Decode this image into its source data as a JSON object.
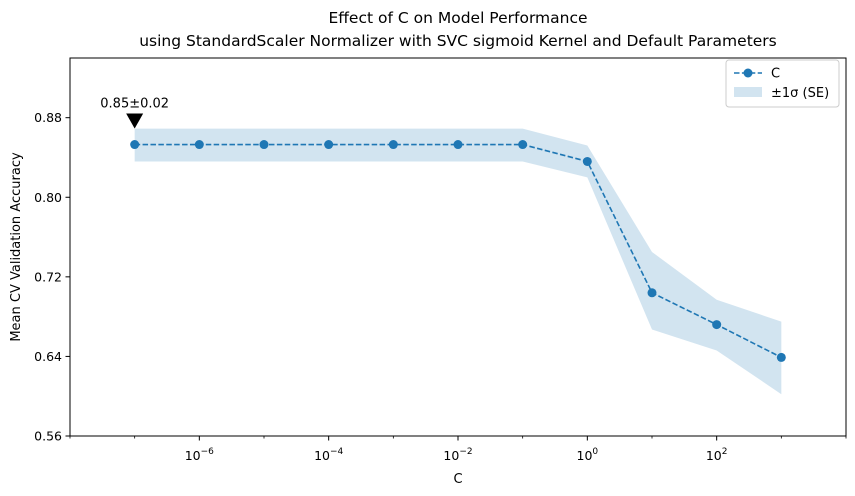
{
  "chart_data": {
    "type": "line",
    "title": "Effect of C on Model Performance",
    "subtitle": "using StandardScaler Normalizer with SVC sigmoid Kernel and Default Parameters",
    "xlabel": "C",
    "ylabel": "Mean CV Validation Accuracy",
    "xscale": "log",
    "xlim": [
      1e-08,
      10000.0
    ],
    "ylim": [
      0.56,
      0.94
    ],
    "x_ticks": [
      {
        "value": 1e-06,
        "base": "10",
        "exp": "−6"
      },
      {
        "value": 0.0001,
        "base": "10",
        "exp": "−4"
      },
      {
        "value": 0.01,
        "base": "10",
        "exp": "−2"
      },
      {
        "value": 1,
        "base": "10",
        "exp": "0"
      },
      {
        "value": 100,
        "base": "10",
        "exp": "2"
      }
    ],
    "y_ticks": [
      {
        "value": 0.56,
        "label": "0.56"
      },
      {
        "value": 0.64,
        "label": "0.64"
      },
      {
        "value": 0.72,
        "label": "0.72"
      },
      {
        "value": 0.8,
        "label": "0.80"
      },
      {
        "value": 0.88,
        "label": "0.88"
      }
    ],
    "grid": false,
    "legend_position": "top-right",
    "series": [
      {
        "name": "C",
        "color": "#1f77b4",
        "line_style": "dashed",
        "marker": "circle",
        "x": [
          1e-07,
          1e-06,
          1e-05,
          0.0001,
          0.001,
          0.01,
          0.1,
          1,
          10,
          100,
          1000
        ],
        "y": [
          0.853,
          0.853,
          0.853,
          0.853,
          0.853,
          0.853,
          0.853,
          0.836,
          0.704,
          0.672,
          0.639
        ],
        "band_lower": [
          0.836,
          0.836,
          0.836,
          0.836,
          0.836,
          0.836,
          0.836,
          0.82,
          0.667,
          0.646,
          0.602
        ],
        "band_upper": [
          0.869,
          0.869,
          0.869,
          0.869,
          0.869,
          0.869,
          0.869,
          0.852,
          0.745,
          0.697,
          0.675
        ]
      }
    ],
    "band": {
      "name": "±1σ (SE)",
      "color": "#1f77b4",
      "opacity": 0.2
    },
    "annotation": {
      "text": "0.85±0.02",
      "x": 1e-07,
      "y": 0.853,
      "marker_color": "#000000"
    }
  }
}
